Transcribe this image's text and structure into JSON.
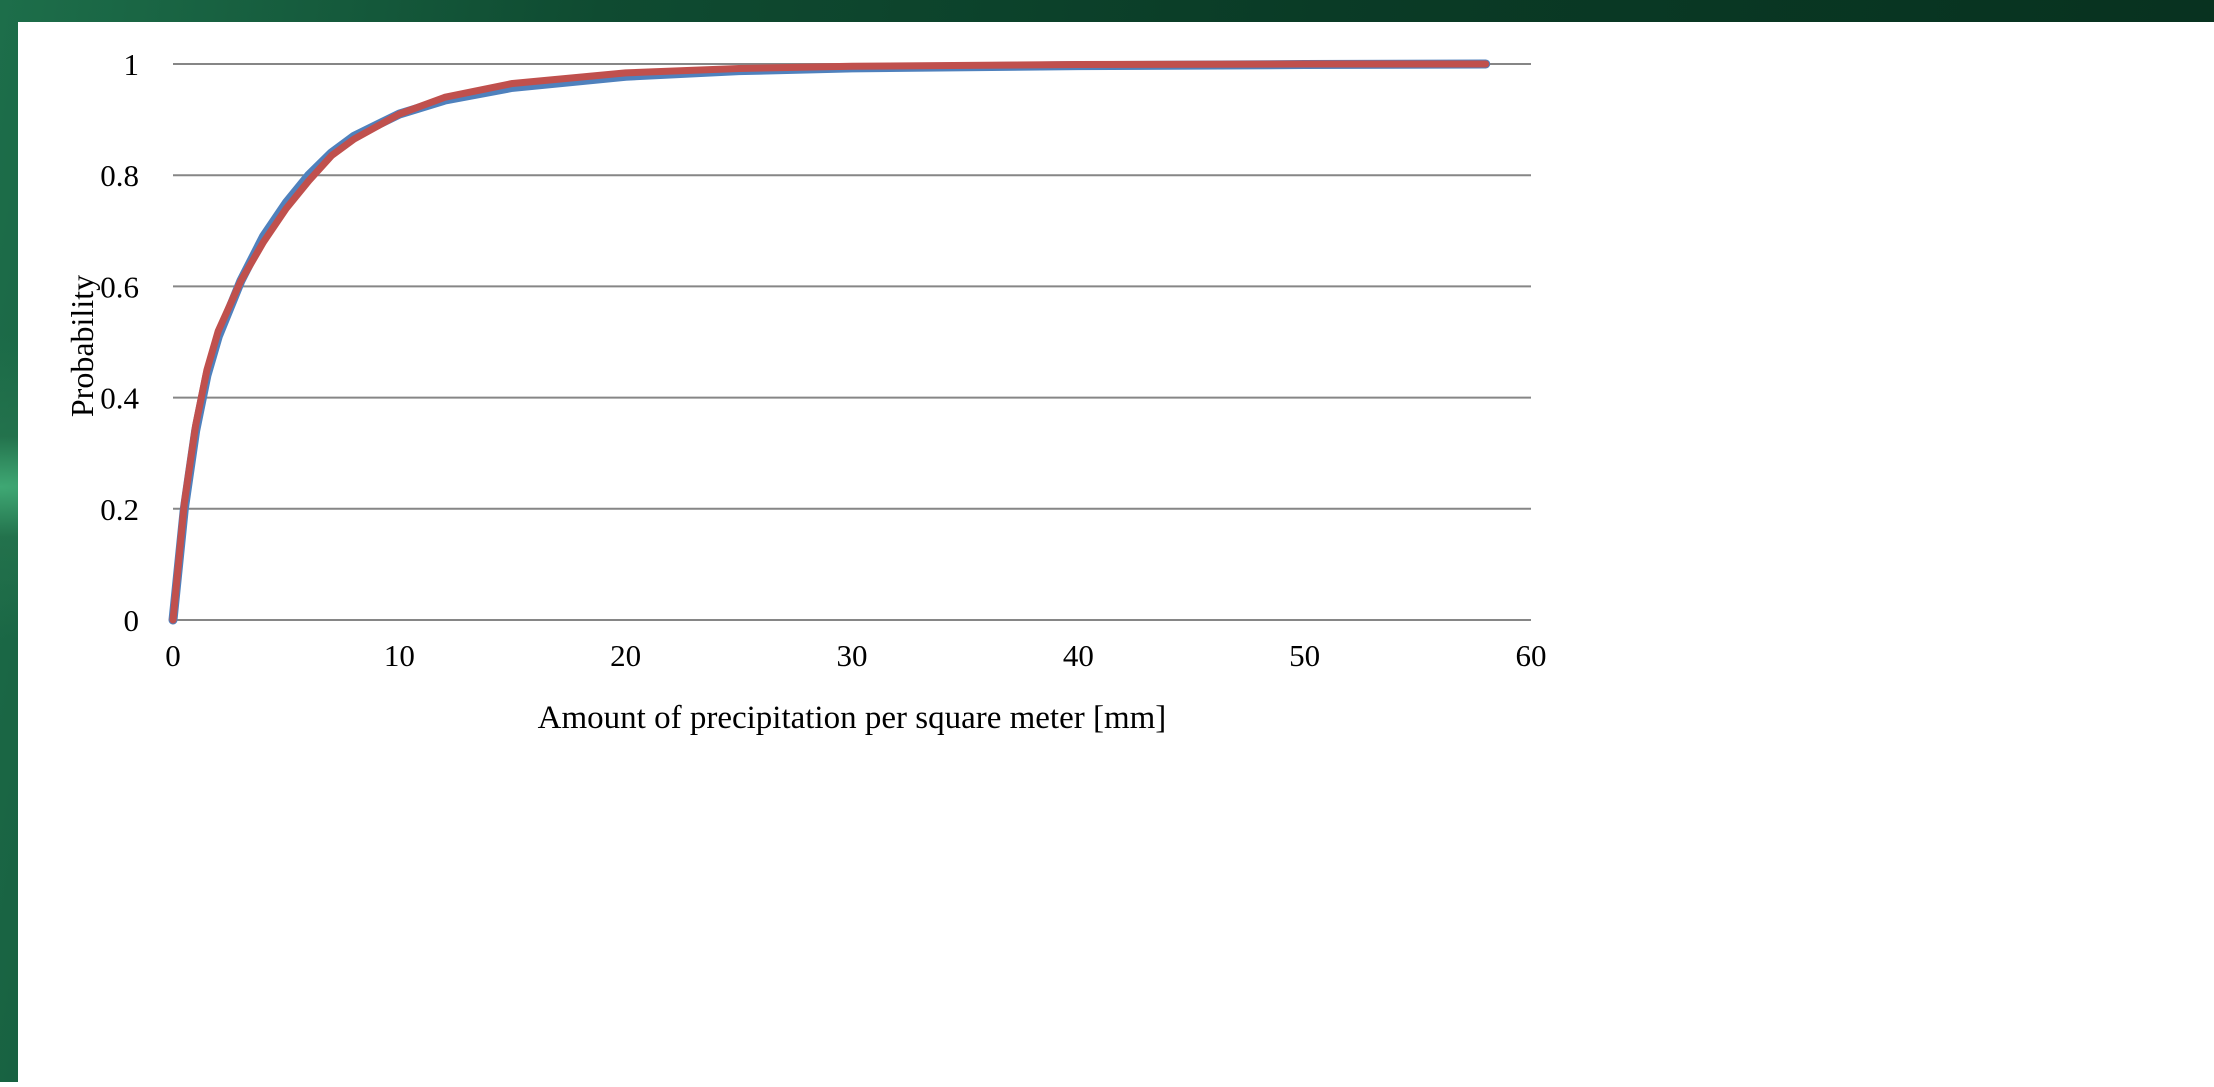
{
  "chart_data": {
    "type": "line",
    "title": "",
    "xlabel": "Amount of precipitation per square meter [mm]",
    "ylabel": "Probability",
    "xlim": [
      0,
      60
    ],
    "ylim": [
      0,
      1
    ],
    "xticks": [
      0,
      10,
      20,
      30,
      40,
      50,
      60
    ],
    "yticks": [
      0,
      0.2,
      0.4,
      0.6,
      0.8,
      1
    ],
    "ytick_labels": [
      "0",
      "0.2",
      "0.4",
      "0.6",
      "0.8",
      "1"
    ],
    "grid": "horizontal",
    "legend": "none",
    "series": [
      {
        "color": "#4f81bd",
        "x": [
          0,
          0.5,
          1,
          1.5,
          2,
          3,
          4,
          5,
          6,
          7,
          8,
          10,
          12,
          15,
          20,
          25,
          30,
          40,
          50,
          58
        ],
        "y": [
          0,
          0.2,
          0.34,
          0.44,
          0.51,
          0.61,
          0.69,
          0.75,
          0.8,
          0.84,
          0.87,
          0.91,
          0.935,
          0.958,
          0.978,
          0.988,
          0.993,
          0.997,
          0.999,
          1.0
        ]
      },
      {
        "color": "#c0504d",
        "x": [
          0,
          0.5,
          1,
          1.5,
          2,
          3,
          4,
          5,
          6,
          7,
          8,
          10,
          12,
          15,
          20,
          25,
          30,
          40,
          50,
          58
        ],
        "y": [
          0,
          0.21,
          0.35,
          0.45,
          0.52,
          0.61,
          0.68,
          0.74,
          0.79,
          0.835,
          0.865,
          0.91,
          0.94,
          0.965,
          0.984,
          0.992,
          0.996,
          0.999,
          1.0,
          1.0
        ]
      }
    ]
  }
}
